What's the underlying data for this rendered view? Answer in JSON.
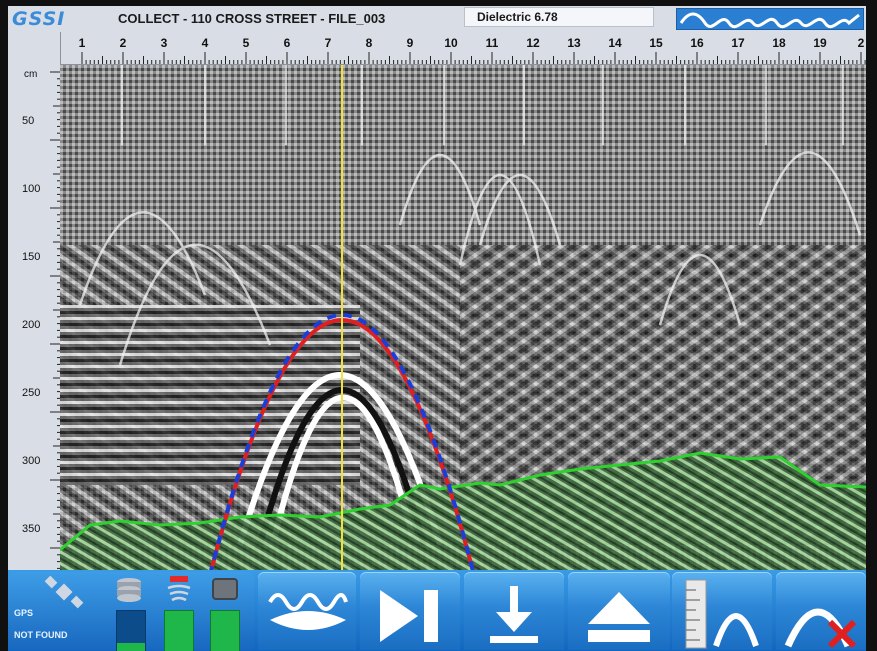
{
  "header": {
    "logo_text": "GSSI",
    "title": "COLLECT - 110 CROSS STREET - FILE_003",
    "dielectric": "Dielectric 6.78"
  },
  "ruler_horizontal": {
    "labels": [
      "1",
      "2",
      "3",
      "4",
      "5",
      "6",
      "7",
      "8",
      "9",
      "10",
      "11",
      "12",
      "13",
      "14",
      "15",
      "16",
      "17",
      "18",
      "19",
      "2"
    ]
  },
  "ruler_vertical": {
    "unit": "cm",
    "labels": [
      "50",
      "100",
      "150",
      "200",
      "250",
      "300",
      "350"
    ]
  },
  "status": {
    "gps_label": "GPS",
    "gps_status": "NOT FOUND"
  },
  "toolbar": {
    "buttons": [
      {
        "name": "wave-filter-button",
        "icon": "wave-icon"
      },
      {
        "name": "play-pause-button",
        "icon": "play-pause-icon"
      },
      {
        "name": "save-download-button",
        "icon": "download-icon"
      },
      {
        "name": "eject-button",
        "icon": "eject-icon"
      },
      {
        "name": "hyperbola-fit-button",
        "icon": "hyperbola-ruler-icon"
      },
      {
        "name": "hyperbola-clear-button",
        "icon": "hyperbola-delete-icon"
      }
    ]
  },
  "colors": {
    "accent": "#2b7fd2",
    "cursor_line": "#f0e040",
    "hyperbola_red": "#e02020",
    "hyperbola_blue": "#1a3fd8",
    "overlay_green": "#2fd12f"
  }
}
